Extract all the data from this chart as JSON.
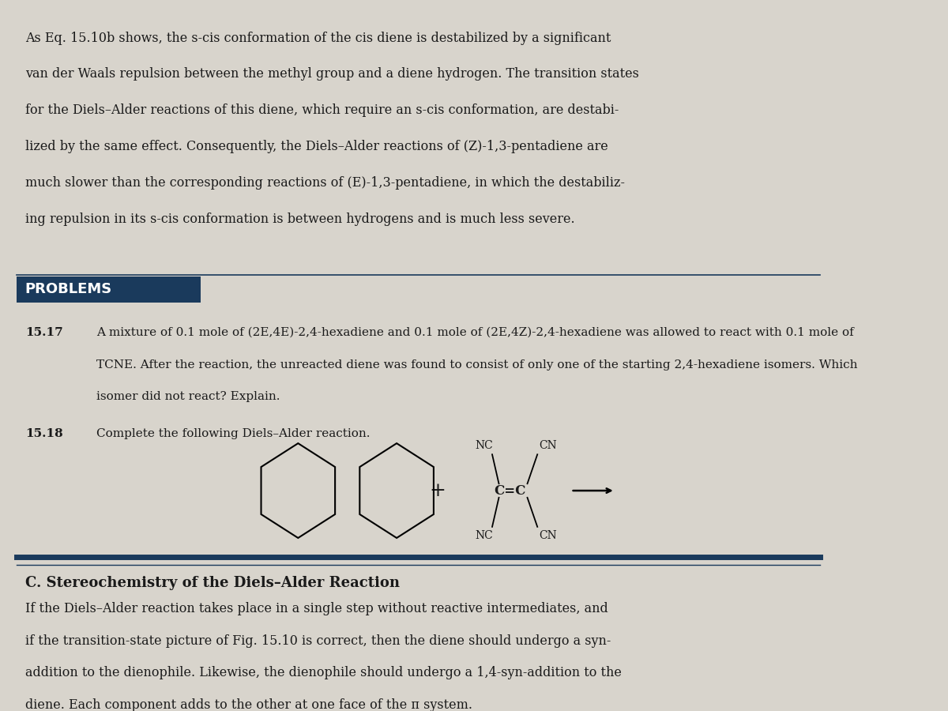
{
  "bg_color": "#d8d4cc",
  "page_bg": "#e8e4dc",
  "header_text": "As Eq. 15.10b shows, the s-cis conformation of the cis diene is destabilized by a significant\nvan der Waals repulsion between the methyl group and a diene hydrogen. The transition states\nfor the Diels–Alder reactions of this diene, which require an s-cis conformation, are destabi-\nlized by the same effect. Consequently, the Diels–Alder reactions of (Z)-1,3-pentadiene are\nmuch slower than the corresponding reactions of (E)-1,3-pentadiene, in which the destabiliz-\ning repulsion in its s-cis conformation is between hydrogens and is much less severe.",
  "problems_label": "PROBLEMS",
  "problems_bg": "#1a3a5c",
  "problems_text_color": "#ffffff",
  "p1517_num": "15.17",
  "p1517_text": "A mixture of 0.1 mole of (2E,4E)-2,4-hexadiene and 0.1 mole of (2E,4Z)-2,4-hexadiene was allowed to react with 0.1 mole of\nTCNE. After the reaction, the unreacted diene was found to consist of only one of the starting 2,4-hexadiene isomers. Which\nisomer did not react? Explain.",
  "p1518_num": "15.18",
  "p1518_text": "Complete the following Diels–Alder reaction.",
  "section_title": "C. Stereochemistry of the Diels–Alder Reaction",
  "section_text": "If the Diels–Alder reaction takes place in a single step without reactive intermediates, and\nif the transition-state picture of Fig. 15.10 is correct, then the diene should undergo a syn-\naddition to the dienophile. Likewise, the dienophile should undergo a 1,4-syn-addition to the\ndiene. Each component adds to the other at one face of the π system.",
  "divider_color": "#1a3a5c",
  "text_color": "#1a1a1a",
  "font_size_body": 11.5,
  "font_size_problems": 11.0,
  "font_size_section": 13.0
}
